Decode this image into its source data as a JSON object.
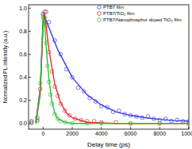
{
  "chart_data": {
    "type": "scatter",
    "x_label": "Delay time (ps)",
    "y_label": "Normalized PL intensity (a.u.)",
    "xlim": [
      -1000,
      10000
    ],
    "ylim": [
      -0.05,
      1.03
    ],
    "xticks": [
      0,
      2000,
      4000,
      6000,
      8000,
      10000
    ],
    "yticks": [
      {
        "value": 0,
        "label": "0.0"
      },
      {
        "value": 0.2,
        "label": "0.2"
      },
      {
        "value": 0.4,
        "label": "0.4"
      },
      {
        "value": 0.6,
        "label": "0.6"
      },
      {
        "value": 0.8,
        "label": "0.8"
      },
      {
        "value": 1,
        "label": "1.0"
      }
    ],
    "legend": "top-right",
    "marker": "circle",
    "grid": false,
    "series": [
      {
        "name": "PTB7 film",
        "color": "#3a3af0",
        "x": [
          -800,
          -400,
          0,
          200,
          400,
          800,
          1200,
          1600,
          2000,
          2400,
          2800,
          3200,
          3600,
          4000,
          4400,
          4800,
          5200,
          5600,
          6000,
          6400,
          6800,
          7200,
          7600,
          8000,
          8400,
          8800,
          9200,
          9600,
          10000
        ],
        "values": [
          0.02,
          0.05,
          0.95,
          0.97,
          0.88,
          0.72,
          0.6,
          0.47,
          0.4,
          0.31,
          0.28,
          0.22,
          0.19,
          0.15,
          0.14,
          0.1,
          0.11,
          0.08,
          0.07,
          0.06,
          0.05,
          0.06,
          0.04,
          0.03,
          0.04,
          0.02,
          0.03,
          0.02,
          0.02
        ],
        "fit_x": [
          -500,
          -200,
          0,
          100,
          500,
          1000,
          2000,
          3000,
          4000,
          5000,
          6000,
          7000,
          8000,
          9000,
          10000
        ],
        "fit_values": [
          0.01,
          0.3,
          0.85,
          0.93,
          0.8,
          0.64,
          0.4,
          0.25,
          0.16,
          0.1,
          0.07,
          0.05,
          0.035,
          0.025,
          0.02
        ]
      },
      {
        "name": "PTB7/TiO₂ film",
        "color": "#e83030",
        "x": [
          -800,
          -400,
          -200,
          0,
          100,
          200,
          400,
          600,
          800,
          1000,
          1200,
          1500,
          1800,
          2200,
          2600,
          3000,
          3500,
          4000,
          5000,
          6000,
          8000,
          10000
        ],
        "values": [
          0.01,
          0.03,
          0.3,
          0.92,
          0.97,
          0.85,
          0.62,
          0.45,
          0.32,
          0.24,
          0.17,
          0.11,
          0.07,
          0.04,
          0.03,
          0.02,
          0.02,
          0.01,
          0.01,
          0,
          0,
          0
        ],
        "fit_x": [
          -500,
          -200,
          0,
          100,
          400,
          800,
          1200,
          1600,
          2000,
          3000,
          5000,
          10000
        ],
        "fit_values": [
          0,
          0.25,
          0.9,
          0.96,
          0.64,
          0.34,
          0.18,
          0.09,
          0.05,
          0.01,
          0,
          0
        ]
      },
      {
        "name": "PTB7/Nanophosphor doped TiO₂ film",
        "color": "#2fbf2f",
        "x": [
          -800,
          -400,
          -200,
          0,
          100,
          200,
          300,
          400,
          500,
          600,
          800,
          1000,
          1200,
          1500,
          2000,
          3000,
          4000,
          6000,
          8000,
          10000
        ],
        "values": [
          0,
          0.02,
          0.35,
          0.95,
          0.92,
          0.7,
          0.5,
          0.36,
          0.25,
          0.17,
          0.08,
          0.04,
          0.02,
          0.01,
          0,
          0,
          0,
          0,
          0,
          0
        ],
        "fit_x": [
          -500,
          -200,
          0,
          100,
          200,
          400,
          600,
          800,
          1000,
          1500,
          2000,
          10000
        ],
        "fit_values": [
          0,
          0.3,
          0.95,
          0.88,
          0.68,
          0.38,
          0.19,
          0.09,
          0.04,
          0.01,
          0,
          0
        ]
      }
    ]
  }
}
